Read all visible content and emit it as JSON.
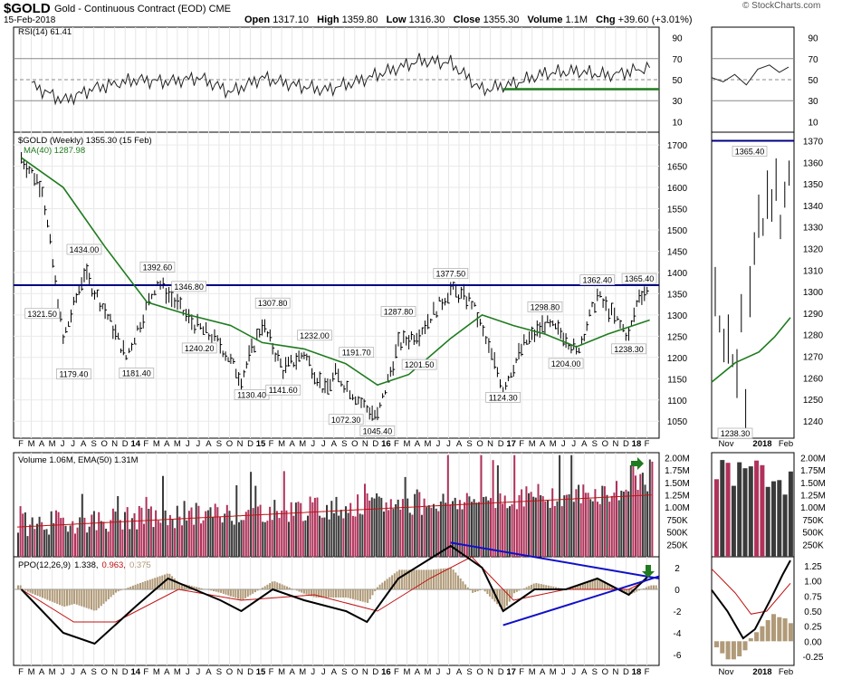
{
  "header": {
    "symbol": "$GOLD",
    "description": "Gold - Continuous Contract (EOD)",
    "exchange": "CME",
    "date": "15-Feb-2018",
    "open_label": "Open",
    "open": "1317.10",
    "high_label": "High",
    "high": "1359.80",
    "low_label": "Low",
    "low": "1316.30",
    "close_label": "Close",
    "close": "1355.30",
    "volume_label": "Volume",
    "volume": "1.1M",
    "chg_label": "Chg",
    "chg": "+39.60 (+3.01%)",
    "brand": "© StockCharts.com"
  },
  "panels": {
    "rsi_label": "RSI(14) 61.41",
    "price_label": "$GOLD (Weekly) 1355.30 (15 Feb)",
    "ma_label": "MA(40) 1287.98",
    "volume_label": "Volume 1.06M, EMA(50) 1.31M",
    "ppo_label": "PPO(12,26,9)",
    "ppo_v1": "1.338,",
    "ppo_v2": "0.963,",
    "ppo_v3": "0.375"
  },
  "colors": {
    "price": "#000000",
    "ma": "#1e7b1e",
    "resistance": "#000080",
    "trendline": "#1010c8",
    "vol_down": "#b0325a",
    "vol_up": "#3a3a3a",
    "ppo_signal": "#c01010",
    "hist": "#b09a78",
    "arrow": "#1e7b1e"
  },
  "chart_data": [
    {
      "type": "line",
      "name": "RSI(14)",
      "y_ticks": [
        10,
        30,
        50,
        70,
        90
      ],
      "ylim": [
        0,
        100
      ],
      "reference_lines": [
        30,
        50,
        70
      ],
      "support_line": 41,
      "x": [
        "2013-03",
        "2013-06",
        "2013-09",
        "2014-01",
        "2014-04",
        "2014-07",
        "2014-10",
        "2015-01",
        "2015-04",
        "2015-07",
        "2015-10",
        "2016-01",
        "2016-04",
        "2016-07",
        "2016-10",
        "2017-01",
        "2017-04",
        "2017-07",
        "2017-10",
        "2018-02"
      ],
      "values": [
        45,
        30,
        42,
        50,
        48,
        52,
        38,
        52,
        45,
        40,
        48,
        58,
        68,
        66,
        40,
        46,
        56,
        58,
        54,
        61.41
      ]
    },
    {
      "type": "line",
      "name": "$GOLD (Weekly)",
      "y_ticks": [
        1050,
        1100,
        1150,
        1200,
        1250,
        1300,
        1350,
        1400,
        1450,
        1500,
        1550,
        1600,
        1650,
        1700
      ],
      "ylim": [
        1010,
        1730
      ],
      "x_ticks": [
        "F",
        "M",
        "A",
        "M",
        "J",
        "J",
        "A",
        "S",
        "O",
        "N",
        "D",
        "14",
        "F",
        "M",
        "A",
        "M",
        "J",
        "J",
        "A",
        "S",
        "O",
        "N",
        "D",
        "15",
        "F",
        "M",
        "A",
        "M",
        "J",
        "J",
        "A",
        "S",
        "O",
        "N",
        "D",
        "16",
        "F",
        "M",
        "A",
        "M",
        "J",
        "J",
        "A",
        "S",
        "O",
        "N",
        "D",
        "17",
        "F",
        "M",
        "A",
        "M",
        "J",
        "J",
        "A",
        "S",
        "O",
        "N",
        "D",
        "18",
        "F"
      ],
      "resistance": 1370,
      "annotations": [
        {
          "label": "1321.50",
          "value": 1321.5
        },
        {
          "label": "1179.40",
          "value": 1179.4
        },
        {
          "label": "1434.00",
          "value": 1434.0
        },
        {
          "label": "1181.40",
          "value": 1181.4
        },
        {
          "label": "1392.60",
          "value": 1392.6
        },
        {
          "label": "1346.80",
          "value": 1346.8
        },
        {
          "label": "1240.20",
          "value": 1240.2
        },
        {
          "label": "1130.40",
          "value": 1130.4
        },
        {
          "label": "1307.80",
          "value": 1307.8
        },
        {
          "label": "1141.60",
          "value": 1141.6
        },
        {
          "label": "1232.00",
          "value": 1232.0
        },
        {
          "label": "1072.30",
          "value": 1072.3
        },
        {
          "label": "1191.70",
          "value": 1191.7
        },
        {
          "label": "1045.40",
          "value": 1045.4
        },
        {
          "label": "1287.80",
          "value": 1287.8
        },
        {
          "label": "1201.50",
          "value": 1201.5
        },
        {
          "label": "1377.50",
          "value": 1377.5
        },
        {
          "label": "1124.30",
          "value": 1124.3
        },
        {
          "label": "1298.80",
          "value": 1298.8
        },
        {
          "label": "1204.00",
          "value": 1204.0
        },
        {
          "label": "1362.40",
          "value": 1362.4
        },
        {
          "label": "1238.30",
          "value": 1238.3
        },
        {
          "label": "1365.40",
          "value": 1365.4
        }
      ],
      "series": [
        {
          "name": "$GOLD",
          "x": [
            "2013-02",
            "2013-04",
            "2013-06",
            "2013-08",
            "2013-10",
            "2013-12",
            "2014-03",
            "2014-06",
            "2014-09",
            "2014-11",
            "2015-01",
            "2015-03",
            "2015-05",
            "2015-07",
            "2015-08",
            "2015-11",
            "2015-12",
            "2016-02",
            "2016-04",
            "2016-07",
            "2016-09",
            "2016-12",
            "2017-02",
            "2017-04",
            "2017-06",
            "2017-07",
            "2017-09",
            "2017-12",
            "2018-01",
            "2018-02"
          ],
          "values": [
            1670,
            1600,
            1240,
            1400,
            1310,
            1200,
            1380,
            1290,
            1230,
            1150,
            1280,
            1170,
            1210,
            1120,
            1160,
            1080,
            1060,
            1230,
            1260,
            1360,
            1330,
            1130,
            1230,
            1280,
            1250,
            1210,
            1345,
            1250,
            1350,
            1355.3
          ]
        },
        {
          "name": "MA(40)",
          "x": [
            "2013-02",
            "2013-06",
            "2013-10",
            "2014-02",
            "2014-06",
            "2014-10",
            "2015-01",
            "2015-05",
            "2015-09",
            "2015-12",
            "2016-03",
            "2016-07",
            "2016-10",
            "2017-01",
            "2017-04",
            "2017-07",
            "2017-10",
            "2018-02"
          ],
          "values": [
            1670,
            1600,
            1460,
            1330,
            1300,
            1275,
            1235,
            1220,
            1185,
            1135,
            1160,
            1245,
            1300,
            1275,
            1255,
            1225,
            1255,
            1287.98
          ]
        }
      ]
    },
    {
      "type": "bar",
      "name": "Volume",
      "y_ticks": [
        "250K",
        "500K",
        "750K",
        "1.00M",
        "1.25M",
        "1.50M",
        "1.75M",
        "2.00M"
      ],
      "ylim": [
        0,
        2100000
      ],
      "ema_label": "EMA(50) 1.31M",
      "last": 1060000
    },
    {
      "type": "line",
      "name": "PPO(12,26,9)",
      "y_ticks": [
        -6,
        -4,
        -2,
        0,
        2
      ],
      "ylim": [
        -7,
        3
      ],
      "values_legend": [
        1.338,
        0.963,
        0.375
      ],
      "series": [
        {
          "name": "PPO",
          "x": [
            "2013-02",
            "2013-06",
            "2013-09",
            "2014-01",
            "2014-04",
            "2014-09",
            "2014-11",
            "2015-02",
            "2015-05",
            "2015-09",
            "2015-11",
            "2016-02",
            "2016-07",
            "2016-10",
            "2016-12",
            "2017-03",
            "2017-06",
            "2017-09",
            "2017-12",
            "2018-02"
          ],
          "values": [
            0,
            -4,
            -5,
            -1.5,
            1,
            -1,
            -2,
            0,
            -1,
            -2,
            -3,
            1,
            4,
            2,
            -2,
            0,
            0,
            1,
            -0.5,
            1.338
          ]
        },
        {
          "name": "Signal",
          "x": [
            "2013-02",
            "2013-07",
            "2013-11",
            "2014-05",
            "2014-11",
            "2015-06",
            "2015-12",
            "2016-05",
            "2016-09",
            "2017-01",
            "2017-06",
            "2017-12",
            "2018-02"
          ],
          "values": [
            0,
            -3,
            -3,
            0,
            -1,
            -0.5,
            -2,
            1,
            3,
            -1,
            0,
            0,
            0.963
          ]
        }
      ]
    },
    {
      "type": "line",
      "name": "Zoom Nov–Feb",
      "x_ticks": [
        "Nov",
        "2018",
        "Feb"
      ],
      "price_ticks": [
        1240,
        1250,
        1260,
        1270,
        1280,
        1290,
        1300,
        1310,
        1320,
        1330,
        1340,
        1350,
        1360,
        1370
      ],
      "price_labels": {
        "high": "1365.40",
        "low": "1238.30"
      },
      "ppo_ticks": [
        "1.25",
        "1.00",
        "0.75",
        "0.50",
        "0.25",
        "0.00",
        "-0.25"
      ]
    }
  ]
}
